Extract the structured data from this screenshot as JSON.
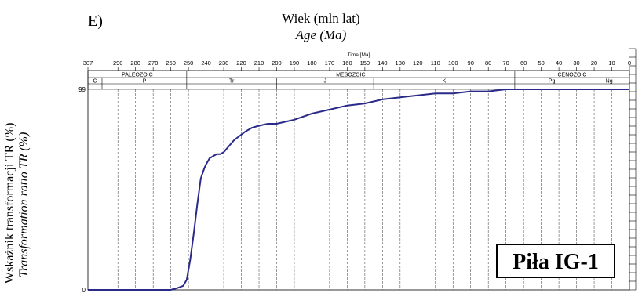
{
  "panel_label": "E)",
  "chart_data": {
    "type": "line",
    "title": "Wiek (mln lat)",
    "subtitle": "Age (Ma)",
    "axis_caption": "Time [Ma]",
    "ylabel": "Wskaźnik transformacji TR (%)",
    "ylabel_en": "Transformation ratio TR (%)",
    "xlim": [
      307,
      0
    ],
    "ylim": [
      0,
      99
    ],
    "x_ticks": [
      307,
      290,
      280,
      270,
      260,
      250,
      240,
      230,
      220,
      210,
      200,
      190,
      180,
      170,
      160,
      150,
      140,
      130,
      120,
      110,
      100,
      90,
      80,
      70,
      60,
      50,
      40,
      30,
      20,
      10,
      0
    ],
    "y_ticks": [
      0,
      99
    ],
    "grid": "vertical dashed",
    "eras": [
      {
        "name": "PALEOZOIC",
        "from": 307,
        "to": 251
      },
      {
        "name": "MESOZOIC",
        "from": 251,
        "to": 65
      },
      {
        "name": "CENOZOIC",
        "from": 65,
        "to": 0
      }
    ],
    "periods": [
      {
        "name": "C",
        "from": 307,
        "to": 299
      },
      {
        "name": "P",
        "from": 299,
        "to": 251
      },
      {
        "name": "Tr",
        "from": 251,
        "to": 200
      },
      {
        "name": "J",
        "from": 200,
        "to": 145
      },
      {
        "name": "K",
        "from": 145,
        "to": 65
      },
      {
        "name": "Pg",
        "from": 65,
        "to": 23
      },
      {
        "name": "Ng",
        "from": 23,
        "to": 0
      }
    ],
    "series": [
      {
        "color": "#2a2a8a",
        "x": [
          307,
          260,
          256,
          253,
          251,
          249,
          247,
          245,
          243,
          241,
          240,
          238,
          236,
          234,
          232,
          230,
          227,
          224,
          221,
          218,
          214,
          210,
          205,
          200,
          195,
          190,
          180,
          170,
          160,
          150,
          140,
          130,
          120,
          110,
          100,
          90,
          80,
          70,
          0
        ],
        "y": [
          0,
          0,
          1,
          2,
          5,
          15,
          28,
          42,
          55,
          60,
          62,
          65,
          66,
          67,
          67,
          68,
          71,
          74,
          76,
          78,
          80,
          81,
          82,
          82,
          83,
          84,
          87,
          89,
          91,
          92,
          94,
          95,
          96,
          97,
          97,
          98,
          98,
          99,
          99
        ]
      }
    ]
  },
  "well_name": "Piła IG-1"
}
